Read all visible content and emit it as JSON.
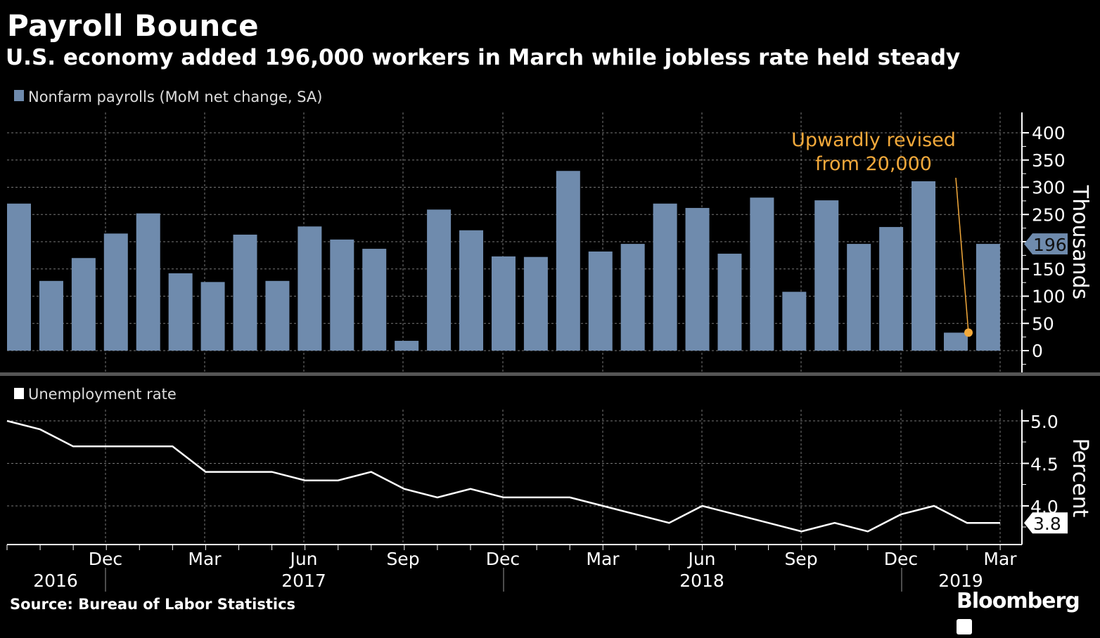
{
  "header": {
    "title": "Payroll Bounce",
    "subtitle": "U.S. economy added 196,000 workers in March while jobless rate held steady"
  },
  "footer": {
    "source": "Source: Bureau of Labor Statistics",
    "logo": "Bloomberg"
  },
  "colors": {
    "background": "#000000",
    "bar": "#6f8bad",
    "line": "#ffffff",
    "annotation": "#f2a93b",
    "grid": "#777777"
  },
  "chart_data": [
    {
      "type": "bar",
      "legend": "Nonfarm payrolls (MoM net change, SA)",
      "ylabel": "Thousands",
      "ylim": [
        0,
        400
      ],
      "yticks": [
        0,
        50,
        100,
        150,
        200,
        250,
        300,
        350,
        400
      ],
      "ytick_labels": [
        "0",
        "50",
        "100",
        "150",
        "",
        "250",
        "300",
        "350",
        "400"
      ],
      "grid": true,
      "x": [
        "2016-09",
        "2016-10",
        "2016-11",
        "2016-12",
        "2017-01",
        "2017-02",
        "2017-03",
        "2017-04",
        "2017-05",
        "2017-06",
        "2017-07",
        "2017-08",
        "2017-09",
        "2017-10",
        "2017-11",
        "2017-12",
        "2018-01",
        "2018-02",
        "2018-03",
        "2018-04",
        "2018-05",
        "2018-06",
        "2018-07",
        "2018-08",
        "2018-09",
        "2018-10",
        "2018-11",
        "2018-12",
        "2019-01",
        "2019-02",
        "2019-03"
      ],
      "values": [
        270,
        128,
        170,
        215,
        252,
        142,
        126,
        213,
        128,
        228,
        204,
        187,
        18,
        259,
        221,
        173,
        172,
        330,
        182,
        196,
        270,
        262,
        178,
        281,
        108,
        276,
        196,
        227,
        311,
        33,
        196
      ],
      "last_value_label": "196",
      "annotation": {
        "lines": [
          "Upwardly revised",
          "from 20,000"
        ],
        "target_x": "2019-02",
        "target_value": 33
      }
    },
    {
      "type": "line",
      "legend": "Unemployment rate",
      "ylabel": "Percent",
      "ylim": [
        3.6,
        5.1
      ],
      "yticks": [
        4.0,
        4.5,
        5.0
      ],
      "ytick_labels": [
        "4.0",
        "4.5",
        "5.0"
      ],
      "grid": true,
      "x": [
        "2016-09",
        "2016-10",
        "2016-11",
        "2016-12",
        "2017-01",
        "2017-02",
        "2017-03",
        "2017-04",
        "2017-05",
        "2017-06",
        "2017-07",
        "2017-08",
        "2017-09",
        "2017-10",
        "2017-11",
        "2017-12",
        "2018-01",
        "2018-02",
        "2018-03",
        "2018-04",
        "2018-05",
        "2018-06",
        "2018-07",
        "2018-08",
        "2018-09",
        "2018-10",
        "2018-11",
        "2018-12",
        "2019-01",
        "2019-02",
        "2019-03"
      ],
      "values": [
        5.0,
        4.9,
        4.7,
        4.7,
        4.7,
        4.7,
        4.4,
        4.4,
        4.4,
        4.3,
        4.3,
        4.4,
        4.2,
        4.1,
        4.2,
        4.1,
        4.1,
        4.1,
        4.0,
        3.9,
        3.8,
        4.0,
        3.9,
        3.8,
        3.7,
        3.8,
        3.7,
        3.9,
        4.0,
        3.8,
        3.8
      ],
      "last_value_label": "3.8"
    }
  ],
  "x_axis": {
    "month_labels": [
      "Dec",
      "Mar",
      "Jun",
      "Sep",
      "Dec",
      "Mar",
      "Jun",
      "Sep",
      "Dec",
      "Mar"
    ],
    "year_labels": [
      "2016",
      "2017",
      "2018",
      "2019"
    ]
  }
}
